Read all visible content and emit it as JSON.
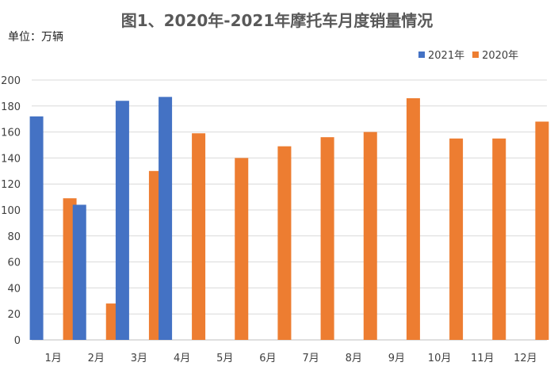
{
  "header": {
    "title": "图1、2020年-2021年摩托车月度销量情况",
    "unit_label": "单位：万辆"
  },
  "colors": {
    "series_2021": "#4472C4",
    "series_2020": "#ED7D31",
    "grid": "#D9D9D9"
  },
  "chart_data": {
    "type": "bar",
    "title": "图1、2020年-2021年摩托车月度销量情况",
    "ylabel": "单位：万辆",
    "categories": [
      "1月",
      "2月",
      "3月",
      "4月",
      "5月",
      "6月",
      "7月",
      "8月",
      "9月",
      "10月",
      "11月",
      "12月"
    ],
    "series": [
      {
        "name": "2021年",
        "values": [
          172,
          104,
          184,
          187,
          null,
          null,
          null,
          null,
          null,
          null,
          null,
          null
        ]
      },
      {
        "name": "2020年",
        "values": [
          109,
          28,
          130,
          159,
          140,
          149,
          156,
          160,
          186,
          155,
          155,
          168
        ]
      }
    ],
    "ylim": [
      0,
      200
    ],
    "yticks": [
      0,
      20,
      40,
      60,
      80,
      100,
      120,
      140,
      160,
      180,
      200
    ],
    "grid": true,
    "legend_position": "top-right"
  }
}
